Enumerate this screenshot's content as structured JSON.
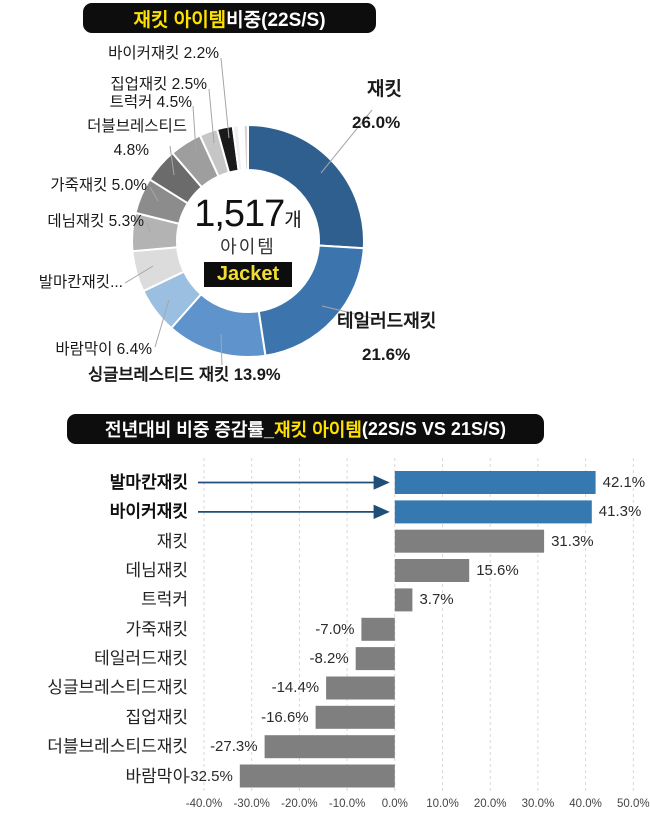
{
  "colors": {
    "pill_bg": "#0d0d0d",
    "highlight_yellow": "#ffe100",
    "badge_yellow": "#f0dd34",
    "bar_blue": "#3678b0",
    "bar_gray": "#7f7f7f",
    "arrow_navy": "#1f4e79",
    "leader_gray": "#a6a6a6",
    "grid_gray": "#d9d9d9"
  },
  "donut_section": {
    "title": {
      "highlight": "재킷 아이템",
      "rest": " 비중(22S/S)"
    },
    "center": {
      "count": "1,517",
      "unit": "개",
      "sub": "아이템",
      "badge": "Jacket"
    },
    "labels": {
      "biker": "바이커재킷 2.2%",
      "zipup": "집업재킷 2.5%",
      "trucker": "트럭커 4.5%",
      "double_line1": "더블브레스티드",
      "double_line2": "4.8%",
      "leather": "가죽재킷 5.0%",
      "denim": "데님재킷 5.3%",
      "balmacaan": "발마칸재킷...",
      "windbreaker": "바람막이 6.4%",
      "single": "싱글브레스티드 재킷 13.9%",
      "tailored_line1": "테일러드재킷",
      "tailored_line2": "21.6%",
      "jacket_line1": "재킷",
      "jacket_line2": "26.0%"
    }
  },
  "bar_section": {
    "title": {
      "pre": "전년대비 비중 증감률_",
      "highlight": "재킷 아이템",
      "post": "(22S/S VS 21S/S)"
    }
  },
  "chart_data": [
    {
      "type": "pie",
      "subtype": "donut",
      "title": "재킷 아이템 비중(22S/S)",
      "center_text": "1,517개 아이템 Jacket",
      "slices": [
        {
          "name": "재킷",
          "value": 26.0,
          "color": "#2e5f8f"
        },
        {
          "name": "테일러드재킷",
          "value": 21.6,
          "color": "#3c74ad"
        },
        {
          "name": "싱글브레스티드 재킷",
          "value": 13.9,
          "color": "#5e94cb"
        },
        {
          "name": "바람막이",
          "value": 6.4,
          "color": "#9bbfe0"
        },
        {
          "name": "발마칸재킷",
          "value": 5.7,
          "color": "#dcdcdc"
        },
        {
          "name": "데님재킷",
          "value": 5.3,
          "color": "#b3b3b3"
        },
        {
          "name": "가죽재킷",
          "value": 5.0,
          "color": "#8c8c8c"
        },
        {
          "name": "더블브레스티드",
          "value": 4.8,
          "color": "#6b6b6b"
        },
        {
          "name": "트럭커",
          "value": 4.5,
          "color": "#9e9e9e"
        },
        {
          "name": "집업재킷",
          "value": 2.5,
          "color": "#c6c6c6"
        },
        {
          "name": "바이커재킷",
          "value": 2.2,
          "color": "#1a1a1a"
        },
        {
          "name": "",
          "value": 0.8,
          "color": "#efefef"
        },
        {
          "name": "",
          "value": 0.7,
          "color": "#ffffff"
        },
        {
          "name": "",
          "value": 0.6,
          "color": "#d5d5d5"
        }
      ]
    },
    {
      "type": "bar",
      "orientation": "horizontal",
      "title": "전년대비 비중 증감률_재킷 아이템(22S/S VS 21S/S)",
      "categories": [
        "발마칸재킷",
        "바이커재킷",
        "재킷",
        "데님재킷",
        "트럭커",
        "가죽재킷",
        "테일러드재킷",
        "싱글브레스티드재킷",
        "집업재킷",
        "더블브레스티드재킷",
        "바람막이"
      ],
      "values": [
        42.1,
        41.3,
        31.3,
        15.6,
        3.7,
        -7.0,
        -8.2,
        -14.4,
        -16.6,
        -27.3,
        -32.5
      ],
      "value_labels": [
        "42.1%",
        "41.3%",
        "31.3%",
        "15.6%",
        "3.7%",
        "-7.0%",
        "-8.2%",
        "-14.4%",
        "-16.6%",
        "-27.3%",
        "-32.5%"
      ],
      "highlighted_categories": [
        "발마칸재킷",
        "바이커재킷"
      ],
      "xlim": [
        -40,
        50
      ],
      "x_ticks": [
        "-40.0%",
        "-30.0%",
        "-20.0%",
        "-10.0%",
        "0.0%",
        "10.0%",
        "20.0%",
        "30.0%",
        "40.0%",
        "50.0%"
      ],
      "grid": true,
      "legend": false
    }
  ]
}
